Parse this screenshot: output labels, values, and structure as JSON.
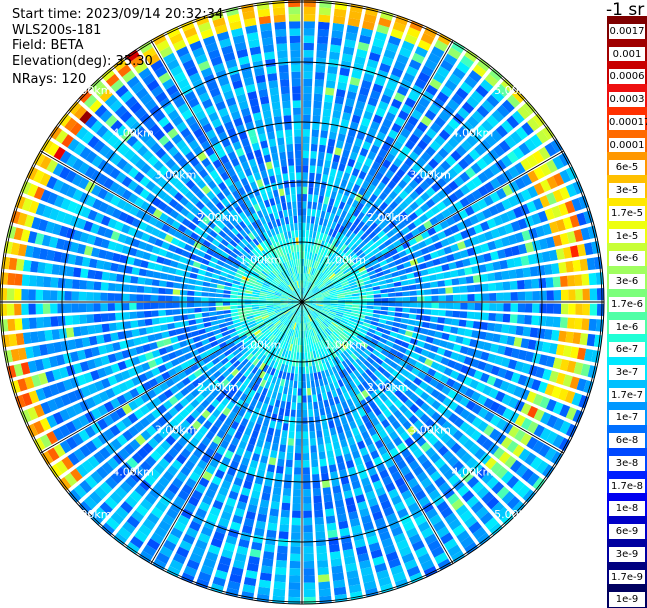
{
  "info": {
    "start_time": "Start time: 2023/09/14 20:32:34",
    "instrument": "WLS200s-181",
    "field": "Field: BETA",
    "elevation": "Elevation(deg): 35.30",
    "nrays": "NRays: 120"
  },
  "colorbar": {
    "unit_label": "-1 sr",
    "levels": [
      "0.0017",
      "0.001",
      "0.0006",
      "0.0003",
      "0.00017",
      "0.0001",
      "6e-5",
      "3e-5",
      "1.7e-5",
      "1e-5",
      "6e-6",
      "3e-6",
      "1.7e-6",
      "1e-6",
      "6e-7",
      "3e-7",
      "1.7e-7",
      "1e-7",
      "6e-8",
      "3e-8",
      "1.7e-8",
      "1e-8",
      "6e-9",
      "3e-9",
      "1.7e-9",
      "1e-9"
    ],
    "colors": [
      "#7f0000",
      "#a00000",
      "#c80000",
      "#ee1010",
      "#ff3000",
      "#ff6a00",
      "#ff9800",
      "#ffc000",
      "#ffe800",
      "#eeff10",
      "#c8ff37",
      "#a0ff60",
      "#7bff7b",
      "#50ffa6",
      "#20ffd6",
      "#00e8ff",
      "#00c0ff",
      "#0098ff",
      "#0070ff",
      "#0048ff",
      "#0020ff",
      "#0000f0",
      "#0000c8",
      "#0000a0",
      "#000080",
      "#000060"
    ]
  },
  "chart_data": {
    "type": "heatmap",
    "projection": "polar (PPI scan)",
    "nrays": 120,
    "elevation_deg": 35.3,
    "range_rings_km": [
      1,
      2,
      3,
      4,
      5
    ],
    "ring_labels": [
      "1.00km",
      "2.00km",
      "3.00km",
      "4.00km",
      "5.00km"
    ],
    "max_range_km": 5.1,
    "radial_lines_deg": [
      0,
      30,
      60,
      90,
      120,
      150,
      180,
      210,
      240,
      270,
      300,
      330
    ],
    "field": "BETA",
    "color_scale": "log",
    "range_min": 1e-09,
    "range_max": 0.0017,
    "grid": true,
    "legend_position": "right"
  }
}
